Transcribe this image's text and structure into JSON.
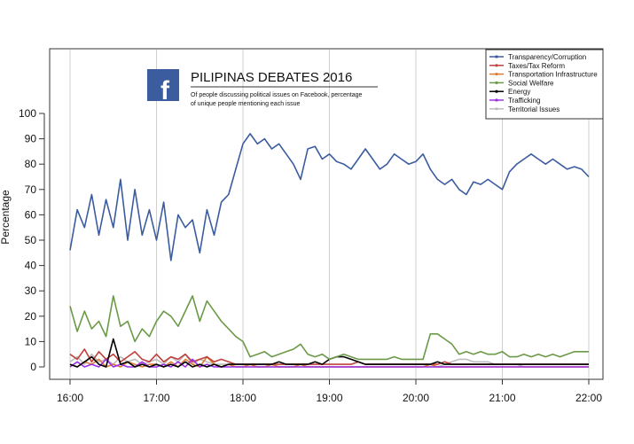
{
  "chart_data": {
    "type": "line",
    "title": "PILIPINAS DEBATES 2016",
    "subtitle": [
      "Of people discussing political issues on Facebook, percentage",
      "of unique people mentioning each issue"
    ],
    "logo_text": "f",
    "xlabel": "",
    "ylabel": "Percentage",
    "ylim": [
      0,
      100
    ],
    "yticks": [
      0,
      10,
      20,
      30,
      40,
      50,
      60,
      70,
      80,
      90,
      100
    ],
    "xticks": [
      "16:00",
      "17:00",
      "18:00",
      "19:00",
      "20:00",
      "21:00",
      "22:00"
    ],
    "grid": "vertical at hours",
    "legend_position": "top-right",
    "x": [
      "16:00",
      "16:05",
      "16:10",
      "16:15",
      "16:20",
      "16:25",
      "16:30",
      "16:35",
      "16:40",
      "16:45",
      "16:50",
      "16:55",
      "17:00",
      "17:05",
      "17:10",
      "17:15",
      "17:20",
      "17:25",
      "17:30",
      "17:35",
      "17:40",
      "17:45",
      "17:50",
      "17:55",
      "18:00",
      "18:05",
      "18:10",
      "18:15",
      "18:20",
      "18:25",
      "18:30",
      "18:35",
      "18:40",
      "18:45",
      "18:50",
      "18:55",
      "19:00",
      "19:05",
      "19:10",
      "19:15",
      "19:20",
      "19:25",
      "19:30",
      "19:35",
      "19:40",
      "19:45",
      "19:50",
      "19:55",
      "20:00",
      "20:05",
      "20:10",
      "20:15",
      "20:20",
      "20:25",
      "20:30",
      "20:35",
      "20:40",
      "20:45",
      "20:50",
      "20:55",
      "21:00",
      "21:05",
      "21:10",
      "21:15",
      "21:20",
      "21:25",
      "21:30",
      "21:35",
      "21:40",
      "21:45",
      "21:50",
      "21:55",
      "22:00"
    ],
    "series": [
      {
        "name": "Transparency/Corruption",
        "color": "#3b5c9f",
        "values": [
          46,
          62,
          55,
          68,
          52,
          66,
          55,
          74,
          50,
          70,
          52,
          62,
          50,
          65,
          42,
          60,
          55,
          58,
          45,
          62,
          52,
          65,
          68,
          78,
          88,
          92,
          88,
          90,
          86,
          88,
          84,
          80,
          74,
          86,
          87,
          82,
          84,
          81,
          80,
          78,
          82,
          86,
          82,
          78,
          80,
          84,
          82,
          80,
          81,
          84,
          78,
          74,
          72,
          74,
          70,
          68,
          73,
          72,
          74,
          72,
          70,
          77,
          80,
          82,
          84,
          82,
          80,
          82,
          80,
          78,
          79,
          78,
          75
        ]
      },
      {
        "name": "Taxes/Tax Reform",
        "color": "#c0413b",
        "values": [
          5,
          3,
          7,
          2,
          6,
          3,
          5,
          2,
          4,
          6,
          3,
          2,
          5,
          2,
          4,
          3,
          5,
          2,
          3,
          4,
          2,
          3,
          2,
          1,
          1,
          1,
          1,
          1,
          1,
          1,
          1,
          1,
          1,
          1,
          1,
          1,
          1,
          1,
          1,
          1,
          2,
          1,
          1,
          1,
          1,
          1,
          1,
          1,
          1,
          1,
          1,
          1,
          2,
          1,
          1,
          1,
          1,
          1,
          1,
          1,
          1,
          1,
          1,
          1,
          1,
          1,
          1,
          1,
          1,
          1,
          1,
          1,
          1
        ]
      },
      {
        "name": "Transportation Infrastructure",
        "color": "#e07b32",
        "values": [
          1,
          0,
          2,
          1,
          3,
          0,
          1,
          0,
          2,
          1,
          0,
          1,
          1,
          0,
          2,
          0,
          3,
          1,
          0,
          4,
          1,
          0,
          1,
          0,
          0,
          1,
          0,
          0,
          1,
          0,
          0,
          0,
          1,
          0,
          0,
          0,
          0,
          0,
          0,
          0,
          0,
          0,
          0,
          0,
          0,
          0,
          0,
          0,
          0,
          0,
          1,
          0,
          0,
          0,
          0,
          0,
          0,
          0,
          0,
          0,
          0,
          0,
          0,
          0,
          0,
          0,
          0,
          0,
          0,
          0,
          0,
          0,
          0
        ]
      },
      {
        "name": "Social Welfare",
        "color": "#6b9a47",
        "values": [
          24,
          14,
          22,
          15,
          18,
          12,
          28,
          16,
          18,
          10,
          15,
          12,
          18,
          22,
          20,
          16,
          22,
          28,
          18,
          26,
          22,
          18,
          15,
          12,
          10,
          4,
          5,
          6,
          4,
          5,
          6,
          7,
          9,
          5,
          4,
          5,
          3,
          4,
          5,
          4,
          3,
          3,
          3,
          3,
          3,
          4,
          3,
          3,
          3,
          3,
          13,
          13,
          11,
          9,
          5,
          6,
          5,
          6,
          5,
          5,
          6,
          4,
          4,
          5,
          4,
          5,
          4,
          5,
          4,
          5,
          6,
          6,
          6
        ]
      },
      {
        "name": "Energy",
        "color": "#000000",
        "values": [
          1,
          0,
          2,
          4,
          1,
          0,
          11,
          1,
          2,
          0,
          1,
          0,
          1,
          0,
          1,
          0,
          2,
          0,
          1,
          0,
          1,
          0,
          1,
          1,
          1,
          1,
          1,
          1,
          1,
          2,
          1,
          1,
          1,
          1,
          2,
          1,
          3,
          4,
          4,
          3,
          2,
          1,
          1,
          1,
          1,
          1,
          1,
          1,
          1,
          1,
          1,
          2,
          1,
          1,
          1,
          1,
          1,
          1,
          1,
          1,
          1,
          1,
          1,
          1,
          1,
          1,
          1,
          1,
          1,
          1,
          1,
          1,
          1
        ]
      },
      {
        "name": "Trafficking",
        "color": "#9b30e8",
        "values": [
          0,
          2,
          0,
          1,
          0,
          3,
          0,
          1,
          0,
          0,
          2,
          0,
          0,
          1,
          0,
          2,
          0,
          3,
          0,
          1,
          0,
          0,
          0,
          0,
          0,
          0,
          0,
          0,
          0,
          0,
          0,
          0,
          0,
          0,
          0,
          0,
          0,
          0,
          0,
          0,
          0,
          0,
          0,
          0,
          0,
          0,
          0,
          0,
          0,
          0,
          0,
          0,
          0,
          0,
          0,
          0,
          0,
          0,
          0,
          0,
          0,
          0,
          0,
          0,
          0,
          0,
          0,
          0,
          0,
          0,
          0,
          0,
          0
        ]
      },
      {
        "name": "Territorial Issues",
        "color": "#bdbdbd",
        "values": [
          2,
          4,
          1,
          5,
          2,
          3,
          1,
          4,
          2,
          3,
          1,
          2,
          3,
          1,
          4,
          2,
          5,
          1,
          3,
          2,
          1,
          1,
          1,
          0,
          0,
          0,
          0,
          0,
          0,
          0,
          0,
          0,
          0,
          0,
          0,
          0,
          0,
          0,
          0,
          0,
          0,
          0,
          0,
          0,
          0,
          0,
          0,
          0,
          0,
          0,
          0,
          0,
          1,
          2,
          3,
          3,
          2,
          2,
          2,
          1,
          1,
          1,
          1,
          0,
          0,
          0,
          0,
          0,
          0,
          0,
          0,
          0,
          0
        ]
      }
    ]
  }
}
